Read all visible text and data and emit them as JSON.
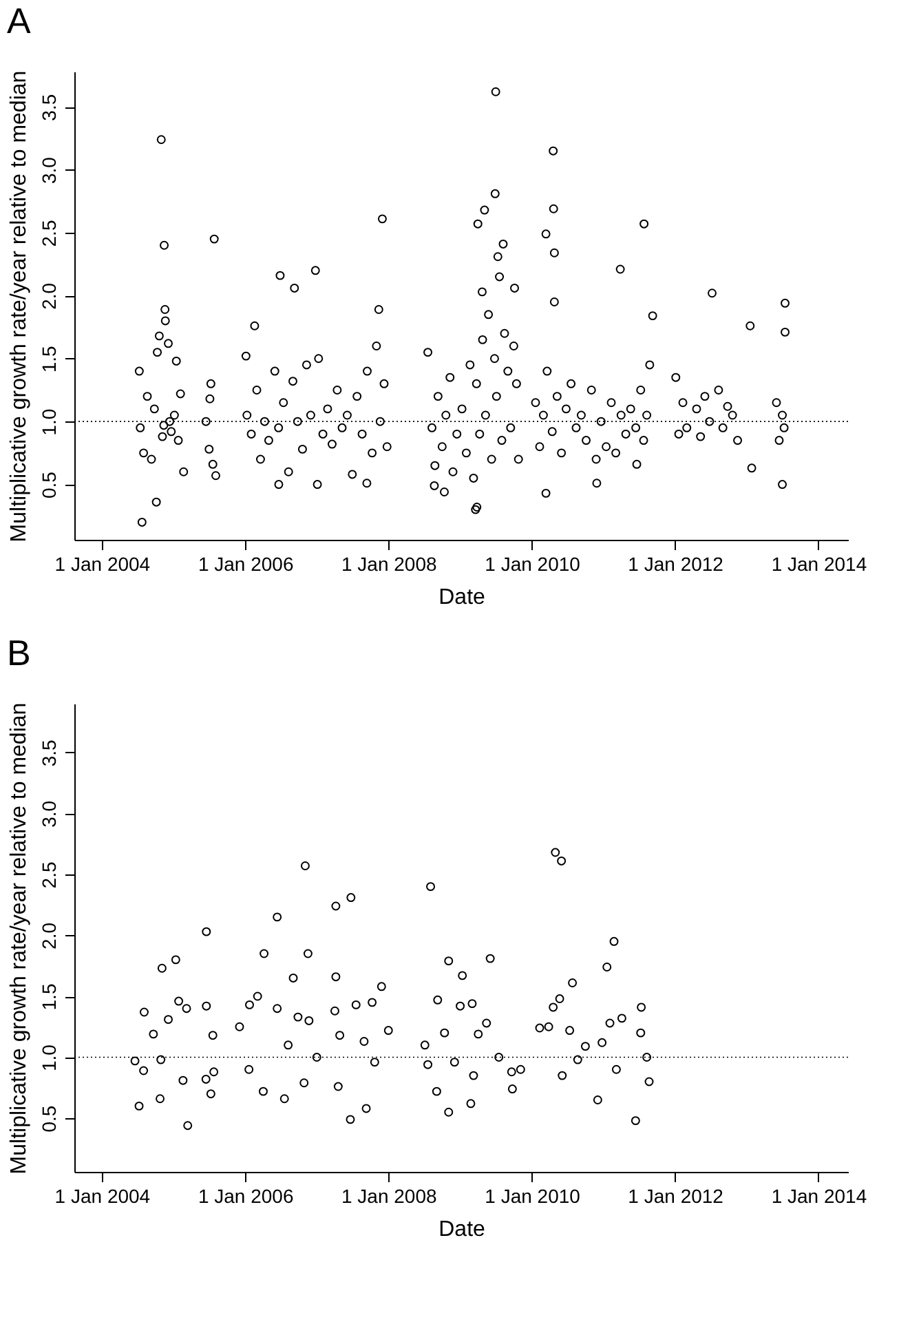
{
  "chart_data": [
    {
      "type": "scatter",
      "title": "A",
      "xlabel": "Date",
      "ylabel": "Multiplicative growth rate/year relative to median",
      "marker": "circle",
      "xlim": [
        "2003-08-14",
        "2014-06-01"
      ],
      "xticks": [
        {
          "value": "2004-01-01",
          "label": "1 Jan 2004"
        },
        {
          "value": "2006-01-01",
          "label": "1 Jan 2006"
        },
        {
          "value": "2008-01-01",
          "label": "1 Jan 2008"
        },
        {
          "value": "2010-01-01",
          "label": "1 Jan 2010"
        },
        {
          "value": "2012-01-01",
          "label": "1 Jan 2012"
        },
        {
          "value": "2014-01-01",
          "label": "1 Jan 2014"
        }
      ],
      "ylim": [
        0.06,
        3.78
      ],
      "yticks": [
        0.5,
        {
          "value": 1,
          "label": "1.0"
        },
        1.5,
        {
          "value": 2,
          "label": "2.0"
        },
        2.5,
        {
          "value": 3,
          "label": "3.0"
        },
        3.5
      ],
      "ref_lines": [
        {
          "axis": "y",
          "value": 1,
          "color": "#000000",
          "line_style": "dotted"
        }
      ],
      "x": [
        "2009-07-01",
        "2004-10-30",
        "2010-04-20",
        "2009-06-28",
        "2009-05-05",
        "2009-04-01",
        "2010-04-22",
        "2007-12-01",
        "2011-07-27",
        "2010-03-14",
        "2010-04-26",
        "2004-11-14",
        "2005-07-27",
        "2009-08-08",
        "2009-07-12",
        "2006-12-25",
        "2011-03-28",
        "2006-06-28",
        "2006-09-09",
        "2012-07-08",
        "2010-04-26",
        "2013-07-15",
        "2004-11-18",
        "2007-11-13",
        "2011-09-09",
        "2009-04-23",
        "2013-07-15",
        "2013-01-18",
        "2006-02-18",
        "2009-10-05",
        "2004-07-24",
        "2004-10-05",
        "2009-03-20",
        "2009-03-27",
        "2010-03-14",
        "2010-11-28",
        "2013-07-01",
        "2013-01-26",
        "2011-06-20",
        "2008-10-12",
        "2008-08-22",
        "2006-06-21",
        "2007-01-04",
        "2007-09-13",
        "2005-08-04",
        "2005-02-21",
        "2004-07-10",
        "2004-07-15",
        "2004-08-01",
        "2004-08-20",
        "2004-09-10",
        "2004-09-25",
        "2004-10-10",
        "2004-10-20",
        "2004-11-05",
        "2004-11-20",
        "2004-12-05",
        "2004-12-20",
        "2005-01-05",
        "2005-01-15",
        "2005-01-25",
        "2005-02-05",
        "2004-12-12",
        "2004-11-12",
        "2005-06-15",
        "2005-07-01",
        "2005-07-10",
        "2005-07-20",
        "2005-07-05",
        "2006-01-05",
        "2006-01-10",
        "2006-02-01",
        "2006-03-01",
        "2006-03-20",
        "2006-04-10",
        "2006-05-01",
        "2006-06-01",
        "2006-06-20",
        "2006-07-15",
        "2006-08-10",
        "2006-09-01",
        "2006-09-25",
        "2006-10-20",
        "2006-11-10",
        "2006-12-01",
        "2007-01-10",
        "2007-02-01",
        "2007-02-25",
        "2007-03-20",
        "2007-04-15",
        "2007-05-10",
        "2007-06-05",
        "2007-07-01",
        "2007-07-25",
        "2007-08-20",
        "2007-09-15",
        "2007-10-10",
        "2007-11-01",
        "2007-11-20",
        "2007-12-10",
        "2007-12-25",
        "2008-07-20",
        "2008-08-10",
        "2008-08-25",
        "2008-09-10",
        "2008-10-01",
        "2008-10-20",
        "2008-11-10",
        "2008-11-25",
        "2008-12-15",
        "2009-01-10",
        "2009-02-01",
        "2009-02-20",
        "2009-03-10",
        "2009-03-25",
        "2009-04-10",
        "2009-04-25",
        "2009-05-10",
        "2009-05-25",
        "2009-06-10",
        "2009-06-25",
        "2009-07-05",
        "2009-07-20",
        "2009-08-01",
        "2009-08-15",
        "2009-09-01",
        "2009-09-15",
        "2009-10-01",
        "2009-10-15",
        "2009-10-25",
        "2010-01-20",
        "2010-02-10",
        "2010-03-01",
        "2010-03-20",
        "2010-04-15",
        "2010-05-10",
        "2010-06-01",
        "2010-06-25",
        "2010-07-20",
        "2010-08-15",
        "2010-09-10",
        "2010-10-05",
        "2010-11-01",
        "2010-11-25",
        "2010-12-20",
        "2011-01-15",
        "2011-02-10",
        "2011-03-05",
        "2011-04-01",
        "2011-04-25",
        "2011-05-20",
        "2011-06-15",
        "2011-07-10",
        "2011-07-25",
        "2011-08-10",
        "2011-08-25",
        "2012-01-05",
        "2012-01-20",
        "2012-02-10",
        "2012-03-01",
        "2012-04-20",
        "2012-05-10",
        "2012-06-01",
        "2012-06-25",
        "2012-08-10",
        "2012-09-01",
        "2012-09-25",
        "2012-10-20",
        "2012-11-15",
        "2013-06-01",
        "2013-06-15",
        "2013-07-01",
        "2013-07-10"
      ],
      "series": [
        {
          "color": "#000000",
          "values": [
            3.62,
            3.24,
            3.15,
            2.81,
            2.68,
            2.57,
            2.69,
            2.61,
            2.57,
            2.49,
            2.34,
            2.4,
            2.45,
            2.41,
            2.31,
            2.2,
            2.21,
            2.16,
            2.06,
            2.02,
            1.95,
            1.94,
            1.89,
            1.89,
            1.84,
            2.03,
            1.71,
            1.76,
            1.76,
            2.06,
            0.2,
            0.36,
            0.3,
            0.32,
            0.43,
            0.51,
            0.5,
            0.63,
            0.66,
            0.44,
            0.49,
            0.5,
            0.5,
            0.51,
            0.57,
            0.6,
            1.4,
            0.95,
            0.75,
            1.2,
            0.7,
            1.1,
            1.55,
            1.68,
            0.88,
            1.8,
            1.62,
            0.92,
            1.05,
            1.48,
            0.85,
            1.22,
            1.0,
            0.97,
            1.0,
            0.78,
            1.3,
            0.66,
            1.18,
            1.52,
            1.05,
            0.9,
            1.25,
            0.7,
            1.0,
            0.85,
            1.4,
            0.95,
            1.15,
            0.6,
            1.32,
            1.0,
            0.78,
            1.45,
            1.05,
            1.5,
            0.9,
            1.1,
            0.82,
            1.25,
            0.95,
            1.05,
            0.58,
            1.2,
            0.9,
            1.4,
            0.75,
            1.6,
            1.0,
            1.3,
            0.8,
            1.55,
            0.95,
            0.65,
            1.2,
            0.8,
            1.05,
            1.35,
            0.6,
            0.9,
            1.1,
            0.75,
            1.45,
            0.55,
            1.3,
            0.9,
            1.65,
            1.05,
            1.85,
            0.7,
            1.5,
            1.2,
            2.15,
            0.85,
            1.7,
            1.4,
            0.95,
            1.6,
            1.3,
            0.7,
            1.15,
            0.8,
            1.05,
            1.4,
            0.92,
            1.2,
            0.75,
            1.1,
            1.3,
            0.95,
            1.05,
            0.85,
            1.25,
            0.7,
            1.0,
            0.8,
            1.15,
            0.75,
            1.05,
            0.9,
            1.1,
            0.95,
            1.25,
            0.85,
            1.05,
            1.45,
            1.35,
            0.9,
            1.15,
            0.95,
            1.1,
            0.88,
            1.2,
            1.0,
            1.25,
            0.95,
            1.12,
            1.05,
            0.85,
            1.15,
            0.85,
            1.05,
            0.95
          ]
        }
      ]
    },
    {
      "type": "scatter",
      "title": "B",
      "xlabel": "Date",
      "ylabel": "Multiplicative growth rate/year relative to median",
      "marker": "circle",
      "xlim": [
        "2003-08-14",
        "2014-06-01"
      ],
      "xticks": [
        {
          "value": "2004-01-01",
          "label": "1 Jan 2004"
        },
        {
          "value": "2006-01-01",
          "label": "1 Jan 2006"
        },
        {
          "value": "2008-01-01",
          "label": "1 Jan 2008"
        },
        {
          "value": "2010-01-01",
          "label": "1 Jan 2010"
        },
        {
          "value": "2012-01-01",
          "label": "1 Jan 2012"
        },
        {
          "value": "2014-01-01",
          "label": "1 Jan 2014"
        }
      ],
      "ylim": [
        0.06,
        3.9
      ],
      "yticks": [
        0.5,
        {
          "value": 1,
          "label": "1.0"
        },
        1.5,
        {
          "value": 2,
          "label": "2.0"
        },
        2.5,
        {
          "value": 3,
          "label": "3.0"
        },
        3.5
      ],
      "ref_lines": [
        {
          "axis": "y",
          "value": 1,
          "color": "#000000",
          "line_style": "dotted"
        }
      ],
      "x": [
        "2010-05-01",
        "2010-06-01",
        "2006-11-03",
        "2008-08-03",
        "2007-06-24",
        "2007-04-08",
        "2006-06-13",
        "2005-06-17",
        "2011-02-24",
        "2006-04-07",
        "2006-11-17",
        "2008-11-03",
        "2009-06-03",
        "2004-11-03",
        "2005-01-12",
        "2011-01-19",
        "2009-01-12",
        "2006-09-03",
        "2007-04-08",
        "2010-07-27",
        "2005-03-14",
        "2011-06-14",
        "2007-06-21",
        "2008-11-03",
        "2004-07-09",
        "2007-09-10",
        "2009-02-24",
        "2006-07-20",
        "2010-12-03",
        "2004-10-24",
        "2005-07-10",
        "2008-09-03",
        "2009-09-24",
        "2004-06-18",
        "2004-08-04",
        "2004-09-20",
        "2004-12-05",
        "2005-01-27",
        "2005-03-08",
        "2005-02-18",
        "2004-10-28",
        "2004-08-01",
        "2005-06-17",
        "2005-07-20",
        "2005-06-15",
        "2005-07-25",
        "2005-12-03",
        "2006-01-23",
        "2006-03-05",
        "2006-01-20",
        "2006-04-03",
        "2006-06-13",
        "2006-08-08",
        "2006-09-27",
        "2006-11-22",
        "2006-10-28",
        "2007-01-01",
        "2007-04-03",
        "2007-04-28",
        "2007-04-20",
        "2007-07-20",
        "2007-10-10",
        "2007-11-27",
        "2007-08-30",
        "2007-10-23",
        "2008-01-01",
        "2008-07-05",
        "2008-07-20",
        "2008-09-08",
        "2008-10-13",
        "2008-12-03",
        "2009-01-01",
        "2009-03-03",
        "2009-04-03",
        "2009-05-15",
        "2009-03-10",
        "2009-07-17",
        "2009-09-20",
        "2009-11-05",
        "2010-02-10",
        "2010-03-28",
        "2010-04-20",
        "2010-05-23",
        "2010-07-13",
        "2010-06-05",
        "2010-08-23",
        "2010-10-01",
        "2010-12-25",
        "2011-02-03",
        "2011-04-05",
        "2011-03-08",
        "2011-07-13",
        "2011-07-10",
        "2011-08-22",
        "2011-08-10"
      ],
      "series": [
        {
          "color": "#000000",
          "values": [
            2.68,
            2.61,
            2.57,
            2.4,
            2.31,
            2.24,
            2.15,
            2.03,
            1.95,
            1.85,
            1.85,
            1.79,
            1.81,
            1.73,
            1.8,
            1.74,
            1.67,
            1.65,
            1.66,
            1.61,
            0.44,
            0.48,
            0.49,
            0.55,
            0.6,
            0.58,
            0.62,
            0.66,
            0.65,
            0.66,
            0.7,
            0.72,
            0.74,
            0.97,
            1.37,
            1.19,
            1.31,
            1.46,
            1.4,
            0.81,
            0.98,
            0.89,
            1.42,
            1.18,
            0.82,
            0.88,
            1.25,
            1.43,
            1.5,
            0.9,
            0.72,
            1.4,
            1.1,
            1.33,
            1.3,
            0.79,
            1.0,
            1.38,
            1.18,
            0.76,
            1.43,
            1.45,
            1.58,
            1.13,
            0.96,
            1.22,
            1.1,
            0.94,
            1.47,
            1.2,
            0.96,
            1.42,
            1.44,
            1.19,
            1.28,
            0.85,
            1.0,
            0.88,
            0.9,
            1.24,
            1.25,
            1.41,
            1.48,
            1.22,
            0.85,
            0.98,
            1.09,
            1.12,
            1.28,
            1.32,
            0.9,
            1.41,
            1.2,
            0.8,
            1.0
          ]
        }
      ]
    }
  ]
}
